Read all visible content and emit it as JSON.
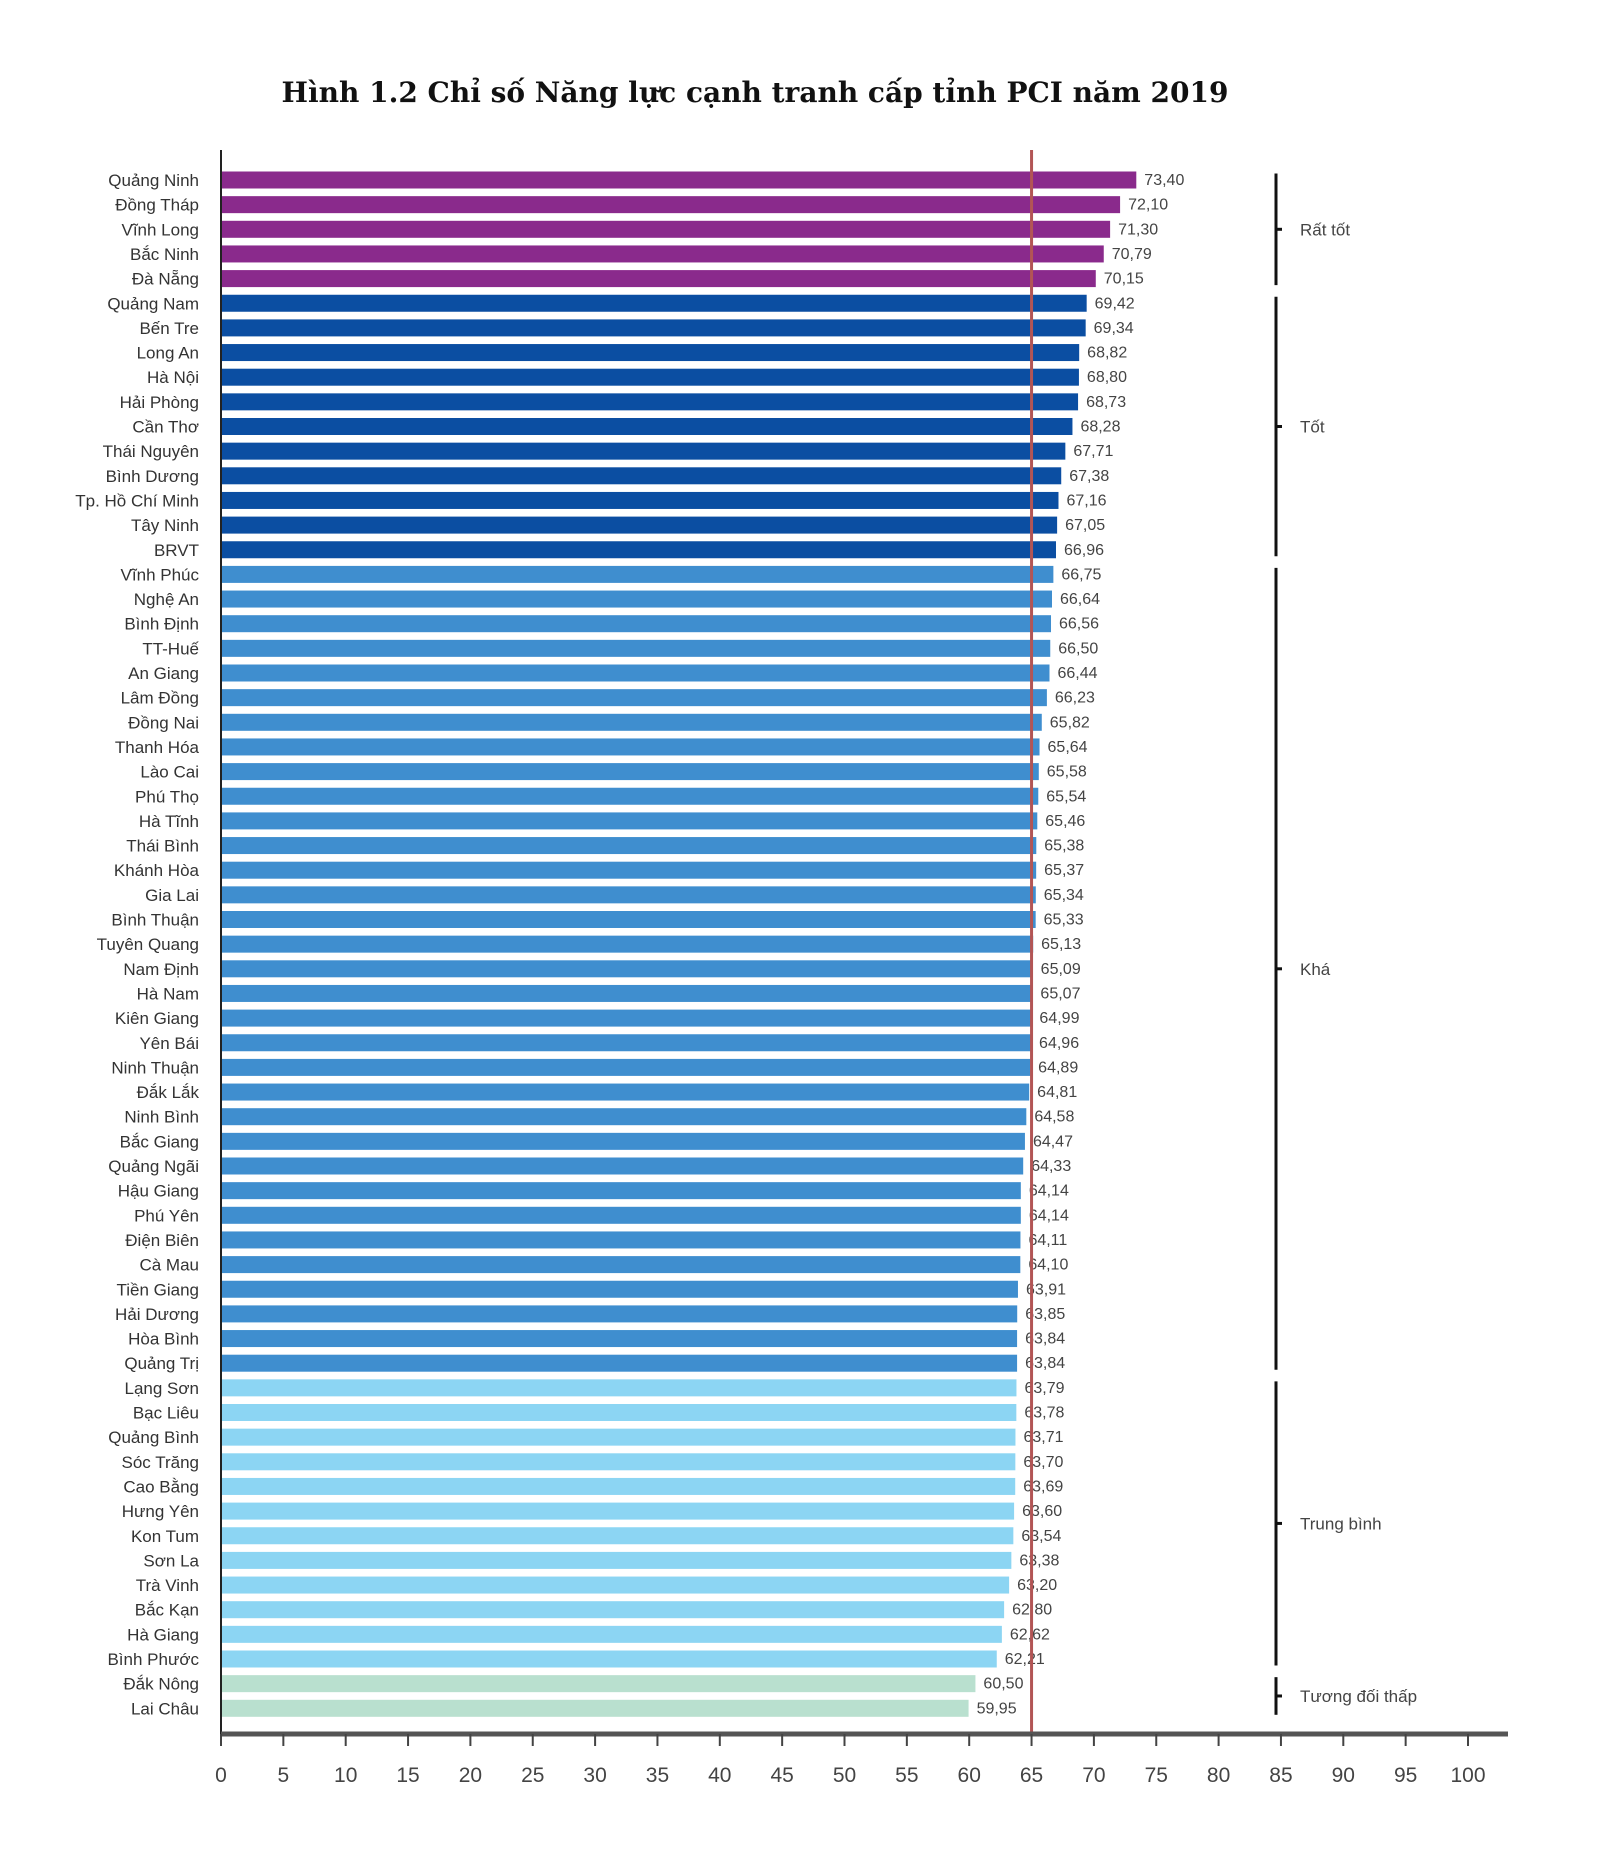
{
  "chart_data": {
    "type": "bar",
    "orientation": "horizontal",
    "title": "Hình 1.2 Chỉ số Năng lực cạnh tranh cấp tỉnh PCI năm 2019",
    "xlabel": "",
    "ylabel": "",
    "xlim": [
      0,
      100
    ],
    "xticks": [
      "0",
      "5",
      "10",
      "15",
      "20",
      "25",
      "30",
      "35",
      "40",
      "45",
      "50",
      "55",
      "60",
      "65",
      "70",
      "75",
      "80",
      "85",
      "90",
      "95",
      "100"
    ],
    "reference_line": 65,
    "colors": {
      "Rất tốt": "#8a2a8c",
      "Tốt": "#0b4ea2",
      "Khá": "#3f8ecf",
      "Trung bình": "#8cd5f3",
      "Tương đối thấp": "#b9e0cf",
      "reference": "#b25555"
    },
    "groups": [
      {
        "name": "Rất tốt",
        "count": 5
      },
      {
        "name": "Tốt",
        "count": 11
      },
      {
        "name": "Khá",
        "count": 33
      },
      {
        "name": "Trung bình",
        "count": 12
      },
      {
        "name": "Tương đối thấp",
        "count": 2
      }
    ],
    "categories": [
      "Quảng Ninh",
      "Đồng Tháp",
      "Vĩnh Long",
      "Bắc Ninh",
      "Đà Nẵng",
      "Quảng Nam",
      "Bến Tre",
      "Long An",
      "Hà Nội",
      "Hải Phòng",
      "Cần Thơ",
      "Thái Nguyên",
      "Bình Dương",
      "Tp. Hồ Chí Minh",
      "Tây Ninh",
      "BRVT",
      "Vĩnh Phúc",
      "Nghệ An",
      "Bình Định",
      "TT-Huế",
      "An Giang",
      "Lâm Đồng",
      "Đồng Nai",
      "Thanh Hóa",
      "Lào Cai",
      "Phú Thọ",
      "Hà Tĩnh",
      "Thái Bình",
      "Khánh Hòa",
      "Gia Lai",
      "Bình Thuận",
      "Tuyên Quang",
      "Nam Định",
      "Hà Nam",
      "Kiên Giang",
      "Yên Bái",
      "Ninh Thuận",
      "Đắk Lắk",
      "Ninh Bình",
      "Bắc Giang",
      "Quảng Ngãi",
      "Hậu Giang",
      "Phú Yên",
      "Điện Biên",
      "Cà Mau",
      "Tiền Giang",
      "Hải Dương",
      "Hòa Bình",
      "Quảng Trị",
      "Lạng Sơn",
      "Bạc Liêu",
      "Quảng Bình",
      "Sóc Trăng",
      "Cao Bằng",
      "Hưng Yên",
      "Kon Tum",
      "Sơn La",
      "Trà Vinh",
      "Bắc Kạn",
      "Hà Giang",
      "Bình Phước",
      "Đắk Nông",
      "Lai Châu"
    ],
    "values": [
      73.4,
      72.1,
      71.3,
      70.79,
      70.15,
      69.42,
      69.34,
      68.82,
      68.8,
      68.73,
      68.28,
      67.71,
      67.38,
      67.16,
      67.05,
      66.96,
      66.75,
      66.64,
      66.56,
      66.5,
      66.44,
      66.23,
      65.82,
      65.64,
      65.58,
      65.54,
      65.46,
      65.38,
      65.37,
      65.34,
      65.33,
      65.13,
      65.09,
      65.07,
      64.99,
      64.96,
      64.89,
      64.81,
      64.58,
      64.47,
      64.33,
      64.14,
      64.14,
      64.11,
      64.1,
      63.91,
      63.85,
      63.84,
      63.84,
      63.79,
      63.78,
      63.71,
      63.7,
      63.69,
      63.6,
      63.54,
      63.38,
      63.2,
      62.8,
      62.62,
      62.21,
      60.5,
      59.95
    ],
    "value_labels": [
      "73,40",
      "72,10",
      "71,30",
      "70,79",
      "70,15",
      "69,42",
      "69,34",
      "68,82",
      "68,80",
      "68,73",
      "68,28",
      "67,71",
      "67,38",
      "67,16",
      "67,05",
      "66,96",
      "66,75",
      "66,64",
      "66,56",
      "66,50",
      "66,44",
      "66,23",
      "65,82",
      "65,64",
      "65,58",
      "65,54",
      "65,46",
      "65,38",
      "65,37",
      "65,34",
      "65,33",
      "65,13",
      "65,09",
      "65,07",
      "64,99",
      "64,96",
      "64,89",
      "64,81",
      "64,58",
      "64,47",
      "64,33",
      "64,14",
      "64,14",
      "64,11",
      "64,10",
      "63,91",
      "63,85",
      "63,84",
      "63,84",
      "63,79",
      "63,78",
      "63,71",
      "63,70",
      "63,69",
      "63,60",
      "63,54",
      "63,38",
      "63,20",
      "62,80",
      "62,62",
      "62,21",
      "60,50",
      "59,95"
    ],
    "grid": false,
    "legend": "none"
  }
}
